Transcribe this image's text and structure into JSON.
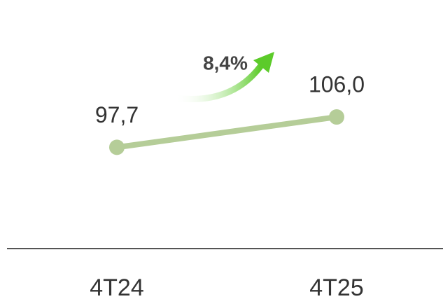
{
  "chart_data": {
    "type": "line",
    "categories": [
      "4T24",
      "4T25"
    ],
    "series": [
      {
        "name": null,
        "color": "#b5cd98",
        "values": [
          97.7,
          106.0
        ],
        "value_labels": [
          "97,7",
          "106,0"
        ]
      }
    ],
    "ylim": [
      70,
      138
    ],
    "annotation": "8,4%",
    "arrow_color": "#5ccb2a"
  }
}
